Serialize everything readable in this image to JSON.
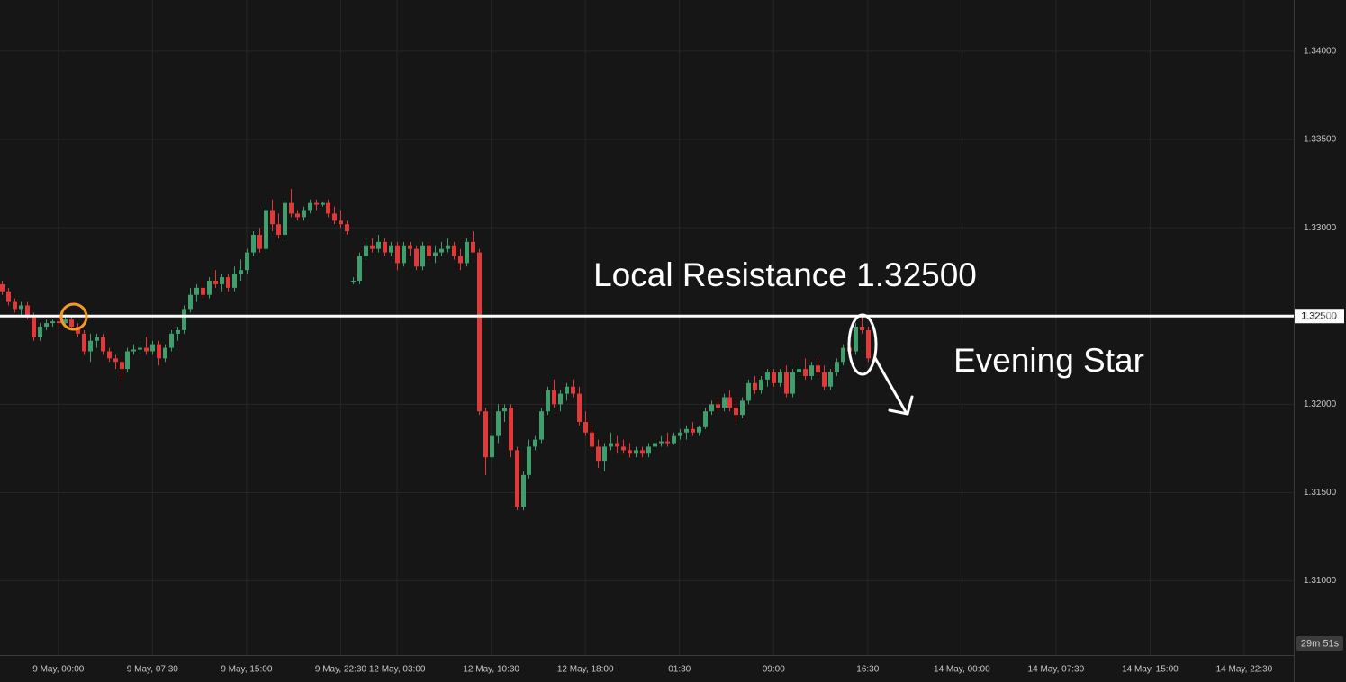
{
  "chart_data": {
    "type": "candlestick",
    "up_color": "#3f9e6b",
    "down_color": "#e0393a",
    "ylim": [
      1.3058,
      1.3429
    ],
    "yticks": [
      {
        "value": 1.31,
        "label": "1.31000"
      },
      {
        "value": 1.315,
        "label": "1.31500"
      },
      {
        "value": 1.32,
        "label": "1.32000"
      },
      {
        "value": 1.325,
        "label": "1.32500"
      },
      {
        "value": 1.33,
        "label": "1.33000"
      },
      {
        "value": 1.335,
        "label": "1.33500"
      },
      {
        "value": 1.34,
        "label": "1.34000"
      }
    ],
    "xlim": [
      -0.3,
      205.9
    ],
    "xticks": [
      {
        "value": 9,
        "label": "9 May, 00:00"
      },
      {
        "value": 24,
        "label": "9 May, 07:30"
      },
      {
        "value": 39,
        "label": "9 May, 15:00"
      },
      {
        "value": 54,
        "label": "9 May, 22:30"
      },
      {
        "value": 63,
        "label": "12 May, 03:00"
      },
      {
        "value": 78,
        "label": "12 May, 10:30"
      },
      {
        "value": 93,
        "label": "12 May, 18:00"
      },
      {
        "value": 108,
        "label": "01:30"
      },
      {
        "value": 123,
        "label": "09:00"
      },
      {
        "value": 138,
        "label": "16:30"
      },
      {
        "value": 153,
        "label": "14 May, 00:00"
      },
      {
        "value": 168,
        "label": "14 May, 07:30"
      },
      {
        "value": 183,
        "label": "14 May, 15:00"
      },
      {
        "value": 198,
        "label": "14 May, 22:30"
      }
    ],
    "grid": true,
    "hline": {
      "value": 1.325,
      "label": "1.32500",
      "color": "#ffffff"
    },
    "resistance_text": "Local Resistance 1.32500",
    "pattern_text": "Evening Star",
    "countdown": "29m 51s",
    "candles": [
      [
        1.3268,
        1.327,
        1.3262,
        1.3264
      ],
      [
        1.3264,
        1.3266,
        1.3256,
        1.3258
      ],
      [
        1.3258,
        1.326,
        1.3252,
        1.3254
      ],
      [
        1.3254,
        1.3258,
        1.325,
        1.3256
      ],
      [
        1.3256,
        1.3258,
        1.3248,
        1.325
      ],
      [
        1.325,
        1.3252,
        1.3236,
        1.3238
      ],
      [
        1.3238,
        1.3246,
        1.3236,
        1.3244
      ],
      [
        1.3244,
        1.3248,
        1.3242,
        1.3246
      ],
      [
        1.3246,
        1.3248,
        1.3244,
        1.3247
      ],
      [
        1.3247,
        1.325,
        1.3244,
        1.3246
      ],
      [
        1.3246,
        1.3251,
        1.3244,
        1.3248
      ],
      [
        1.3248,
        1.325,
        1.3242,
        1.3244
      ],
      [
        1.3244,
        1.3246,
        1.3238,
        1.324
      ],
      [
        1.324,
        1.3242,
        1.3228,
        1.323
      ],
      [
        1.323,
        1.324,
        1.3224,
        1.3236
      ],
      [
        1.3236,
        1.324,
        1.3232,
        1.3238
      ],
      [
        1.3238,
        1.324,
        1.3228,
        1.323
      ],
      [
        1.323,
        1.3232,
        1.3224,
        1.3226
      ],
      [
        1.3226,
        1.3228,
        1.322,
        1.3224
      ],
      [
        1.3224,
        1.3226,
        1.3214,
        1.322
      ],
      [
        1.322,
        1.3232,
        1.3218,
        1.323
      ],
      [
        1.323,
        1.3234,
        1.3228,
        1.3231
      ],
      [
        1.3231,
        1.3236,
        1.3229,
        1.3232
      ],
      [
        1.3232,
        1.3238,
        1.3228,
        1.323
      ],
      [
        1.323,
        1.3236,
        1.3228,
        1.3234
      ],
      [
        1.3234,
        1.3236,
        1.3222,
        1.3226
      ],
      [
        1.3226,
        1.3234,
        1.3224,
        1.3232
      ],
      [
        1.3232,
        1.3242,
        1.323,
        1.324
      ],
      [
        1.324,
        1.3244,
        1.3236,
        1.3242
      ],
      [
        1.3242,
        1.3256,
        1.324,
        1.3254
      ],
      [
        1.3254,
        1.3266,
        1.3252,
        1.3262
      ],
      [
        1.3262,
        1.3268,
        1.3258,
        1.3266
      ],
      [
        1.3266,
        1.327,
        1.326,
        1.3262
      ],
      [
        1.3262,
        1.3272,
        1.326,
        1.327
      ],
      [
        1.327,
        1.3276,
        1.3266,
        1.3268
      ],
      [
        1.3268,
        1.3274,
        1.3264,
        1.3272
      ],
      [
        1.3272,
        1.3274,
        1.3264,
        1.3266
      ],
      [
        1.3266,
        1.3278,
        1.3264,
        1.3274
      ],
      [
        1.3274,
        1.3282,
        1.327,
        1.3276
      ],
      [
        1.3276,
        1.3288,
        1.3274,
        1.3286
      ],
      [
        1.3286,
        1.3298,
        1.3284,
        1.3296
      ],
      [
        1.3296,
        1.33,
        1.3286,
        1.3288
      ],
      [
        1.3288,
        1.3314,
        1.3286,
        1.331
      ],
      [
        1.331,
        1.3316,
        1.3298,
        1.3302
      ],
      [
        1.3302,
        1.3308,
        1.3294,
        1.3296
      ],
      [
        1.3296,
        1.3316,
        1.3294,
        1.3314
      ],
      [
        1.3314,
        1.3322,
        1.3306,
        1.3308
      ],
      [
        1.3308,
        1.331,
        1.3304,
        1.3306
      ],
      [
        1.3306,
        1.3312,
        1.3304,
        1.331
      ],
      [
        1.331,
        1.3316,
        1.3308,
        1.3314
      ],
      [
        1.3314,
        1.3316,
        1.331,
        1.3313
      ],
      [
        1.3313,
        1.3315,
        1.3312,
        1.3314
      ],
      [
        1.3314,
        1.3316,
        1.3306,
        1.3308
      ],
      [
        1.3308,
        1.3312,
        1.3302,
        1.3304
      ],
      [
        1.3304,
        1.331,
        1.33,
        1.3302
      ],
      [
        1.3302,
        1.3304,
        1.3296,
        1.3298
      ],
      [
        1.327,
        1.3272,
        1.3268,
        1.327
      ],
      [
        1.327,
        1.3286,
        1.3268,
        1.3284
      ],
      [
        1.3284,
        1.3294,
        1.3282,
        1.329
      ],
      [
        1.329,
        1.3294,
        1.3286,
        1.3288
      ],
      [
        1.3288,
        1.3296,
        1.3286,
        1.3292
      ],
      [
        1.3292,
        1.3294,
        1.3284,
        1.3286
      ],
      [
        1.3286,
        1.3292,
        1.3284,
        1.329
      ],
      [
        1.329,
        1.3292,
        1.3276,
        1.328
      ],
      [
        1.328,
        1.3292,
        1.3278,
        1.329
      ],
      [
        1.329,
        1.3292,
        1.3284,
        1.3288
      ],
      [
        1.3288,
        1.329,
        1.3276,
        1.3278
      ],
      [
        1.3278,
        1.3292,
        1.3276,
        1.329
      ],
      [
        1.329,
        1.3292,
        1.3282,
        1.3284
      ],
      [
        1.3284,
        1.329,
        1.328,
        1.3286
      ],
      [
        1.3286,
        1.3292,
        1.3284,
        1.3288
      ],
      [
        1.3288,
        1.3294,
        1.3286,
        1.329
      ],
      [
        1.329,
        1.3292,
        1.3282,
        1.3284
      ],
      [
        1.3284,
        1.3288,
        1.3276,
        1.328
      ],
      [
        1.328,
        1.3294,
        1.3278,
        1.3292
      ],
      [
        1.3292,
        1.3298,
        1.3286,
        1.3286
      ],
      [
        1.3286,
        1.3288,
        1.3194,
        1.3196
      ],
      [
        1.3196,
        1.3198,
        1.316,
        1.317
      ],
      [
        1.317,
        1.3184,
        1.3168,
        1.3182
      ],
      [
        1.3182,
        1.32,
        1.3178,
        1.3196
      ],
      [
        1.3196,
        1.32,
        1.319,
        1.3198
      ],
      [
        1.3198,
        1.32,
        1.317,
        1.3174
      ],
      [
        1.3174,
        1.3176,
        1.314,
        1.3142
      ],
      [
        1.3142,
        1.3162,
        1.314,
        1.316
      ],
      [
        1.316,
        1.318,
        1.3158,
        1.3176
      ],
      [
        1.3176,
        1.3182,
        1.3174,
        1.318
      ],
      [
        1.318,
        1.3198,
        1.3178,
        1.3196
      ],
      [
        1.3196,
        1.321,
        1.3194,
        1.3208
      ],
      [
        1.3208,
        1.3214,
        1.3198,
        1.32
      ],
      [
        1.32,
        1.3208,
        1.3196,
        1.3206
      ],
      [
        1.3206,
        1.3212,
        1.3202,
        1.321
      ],
      [
        1.321,
        1.3214,
        1.3204,
        1.3206
      ],
      [
        1.3206,
        1.321,
        1.3188,
        1.319
      ],
      [
        1.319,
        1.3196,
        1.3182,
        1.3184
      ],
      [
        1.3184,
        1.3188,
        1.3174,
        1.3176
      ],
      [
        1.3176,
        1.318,
        1.3164,
        1.3168
      ],
      [
        1.3168,
        1.3178,
        1.3162,
        1.3176
      ],
      [
        1.3176,
        1.3184,
        1.3174,
        1.3178
      ],
      [
        1.3178,
        1.3182,
        1.3172,
        1.3176
      ],
      [
        1.3176,
        1.318,
        1.3172,
        1.3174
      ],
      [
        1.3174,
        1.3178,
        1.317,
        1.3172
      ],
      [
        1.3172,
        1.3176,
        1.317,
        1.3174
      ],
      [
        1.3174,
        1.3176,
        1.317,
        1.3172
      ],
      [
        1.3172,
        1.3178,
        1.317,
        1.3176
      ],
      [
        1.3176,
        1.318,
        1.3174,
        1.3178
      ],
      [
        1.3178,
        1.3182,
        1.3176,
        1.3179
      ],
      [
        1.3179,
        1.3184,
        1.3176,
        1.3178
      ],
      [
        1.3178,
        1.3184,
        1.3177,
        1.3182
      ],
      [
        1.3182,
        1.3186,
        1.318,
        1.3184
      ],
      [
        1.3184,
        1.3188,
        1.318,
        1.3186
      ],
      [
        1.3186,
        1.319,
        1.3182,
        1.3184
      ],
      [
        1.3184,
        1.3188,
        1.3182,
        1.3187
      ],
      [
        1.3187,
        1.3198,
        1.3186,
        1.3196
      ],
      [
        1.3196,
        1.3202,
        1.3194,
        1.32
      ],
      [
        1.32,
        1.3204,
        1.3196,
        1.3198
      ],
      [
        1.3198,
        1.3206,
        1.3196,
        1.3204
      ],
      [
        1.3204,
        1.3208,
        1.3196,
        1.3198
      ],
      [
        1.3198,
        1.3202,
        1.319,
        1.3194
      ],
      [
        1.3194,
        1.3204,
        1.3192,
        1.3202
      ],
      [
        1.3202,
        1.3214,
        1.32,
        1.3212
      ],
      [
        1.3212,
        1.3216,
        1.3206,
        1.3208
      ],
      [
        1.3208,
        1.3216,
        1.3206,
        1.3214
      ],
      [
        1.3214,
        1.322,
        1.321,
        1.3218
      ],
      [
        1.3218,
        1.322,
        1.321,
        1.3212
      ],
      [
        1.3212,
        1.322,
        1.321,
        1.3218
      ],
      [
        1.3218,
        1.3222,
        1.3204,
        1.3206
      ],
      [
        1.3206,
        1.322,
        1.3204,
        1.3218
      ],
      [
        1.3218,
        1.3224,
        1.3216,
        1.322
      ],
      [
        1.322,
        1.3226,
        1.3214,
        1.3216
      ],
      [
        1.3216,
        1.3224,
        1.3214,
        1.3222
      ],
      [
        1.3222,
        1.3226,
        1.3216,
        1.3218
      ],
      [
        1.3218,
        1.3222,
        1.3208,
        1.321
      ],
      [
        1.321,
        1.322,
        1.3208,
        1.3218
      ],
      [
        1.3218,
        1.3226,
        1.3216,
        1.3224
      ],
      [
        1.3224,
        1.3234,
        1.3222,
        1.3232
      ],
      [
        1.3232,
        1.3238,
        1.3228,
        1.323
      ],
      [
        1.323,
        1.3246,
        1.3228,
        1.3244
      ],
      [
        1.3244,
        1.325,
        1.324,
        1.3242
      ],
      [
        1.3242,
        1.3244,
        1.3224,
        1.3226
      ]
    ]
  }
}
